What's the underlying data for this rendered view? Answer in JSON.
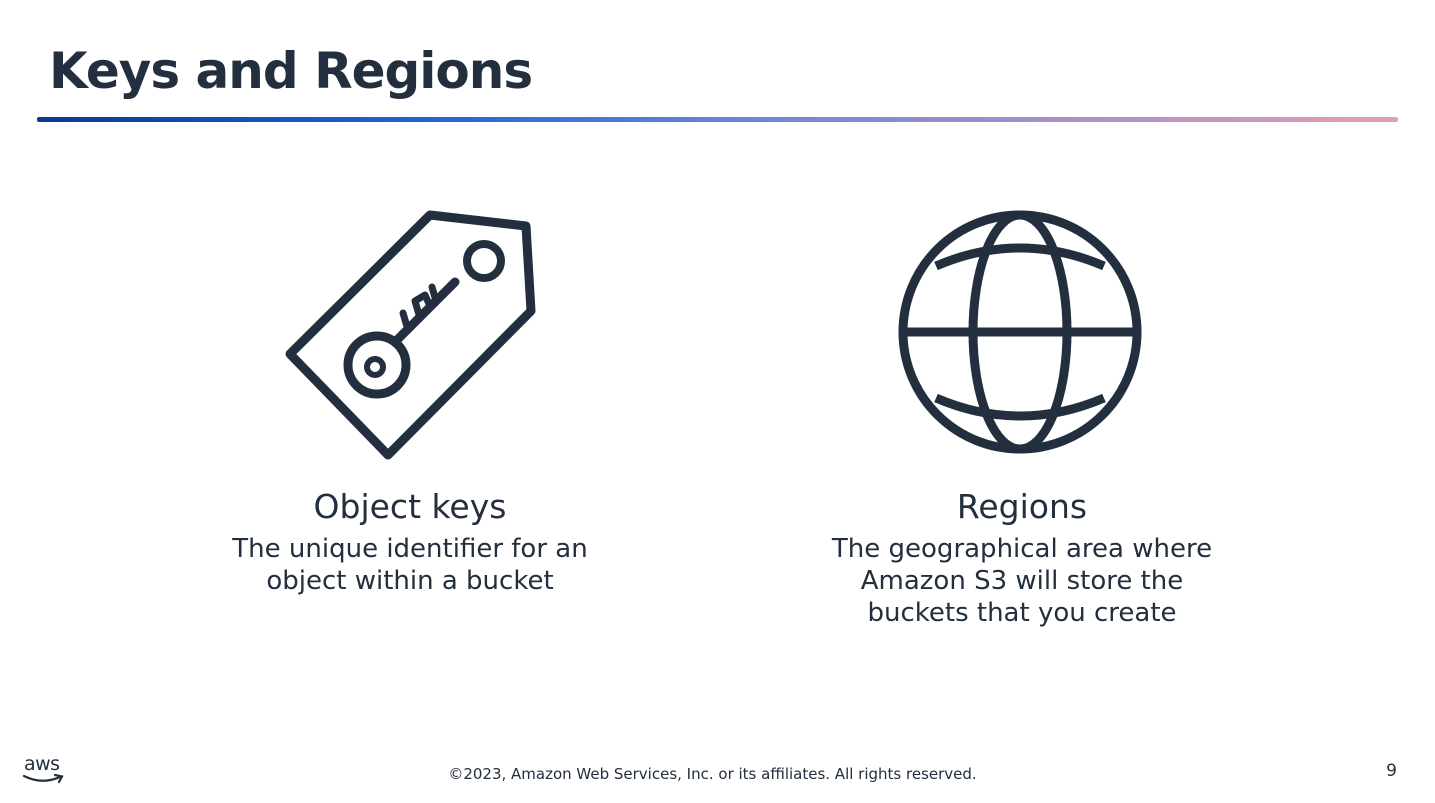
{
  "slide": {
    "title": "Keys and Regions",
    "page_number": "9"
  },
  "features": [
    {
      "heading": "Object keys",
      "description_lines": [
        "The unique identifier for an",
        "object within a bucket"
      ],
      "icon": "key-tag-icon"
    },
    {
      "heading": "Regions",
      "description_lines": [
        "The geographical area where",
        "Amazon S3 will store the",
        "buckets that you create"
      ],
      "icon": "globe-icon"
    }
  ],
  "footer": {
    "logo_text": "aws",
    "copyright": "©2023, Amazon Web Services, Inc. or its affiliates. All rights reserved."
  },
  "colors": {
    "text": "#232f3e",
    "rule_start": "#0a3a91",
    "rule_end": "#e59eb1"
  }
}
